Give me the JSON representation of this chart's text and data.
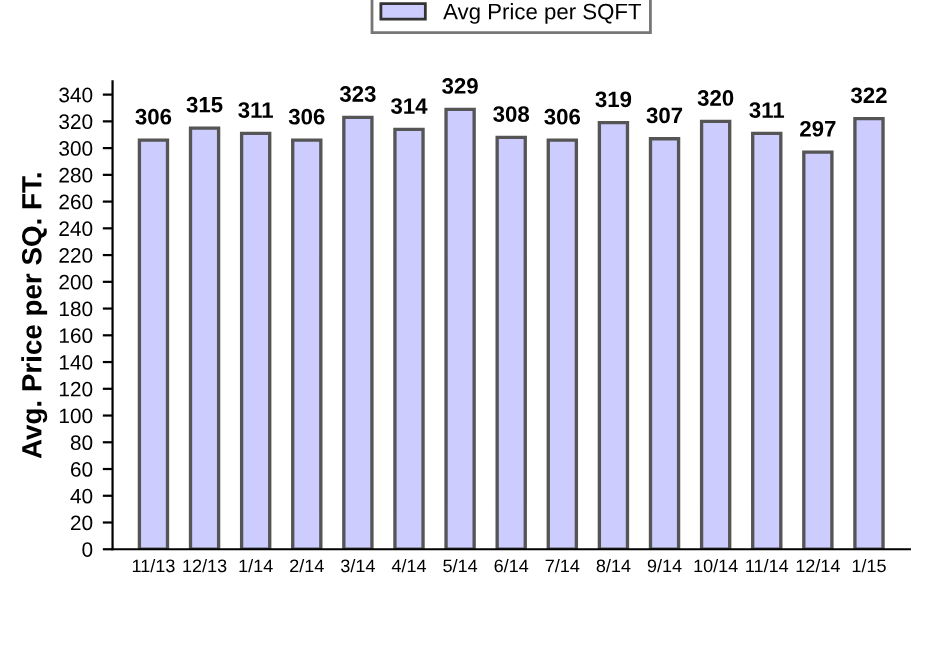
{
  "chart_data": {
    "type": "bar",
    "ylabel": "Avg. Price per SQ. FT.",
    "categories": [
      "11/13",
      "12/13",
      "1/14",
      "2/14",
      "3/14",
      "4/14",
      "5/14",
      "6/14",
      "7/14",
      "8/14",
      "9/14",
      "10/14",
      "11/14",
      "12/14",
      "1/15"
    ],
    "series": [
      {
        "name": "Avg Price per SQFT",
        "color": "#ccccff",
        "values": [
          306,
          315,
          311,
          306,
          323,
          314,
          329,
          308,
          306,
          319,
          307,
          320,
          311,
          297,
          322
        ]
      }
    ],
    "ylim": [
      0,
      350
    ],
    "yticks": [
      0,
      20,
      40,
      60,
      80,
      100,
      120,
      140,
      160,
      180,
      200,
      220,
      240,
      260,
      280,
      300,
      320,
      340
    ],
    "data_labels": true,
    "grid": false,
    "legend": "top"
  }
}
